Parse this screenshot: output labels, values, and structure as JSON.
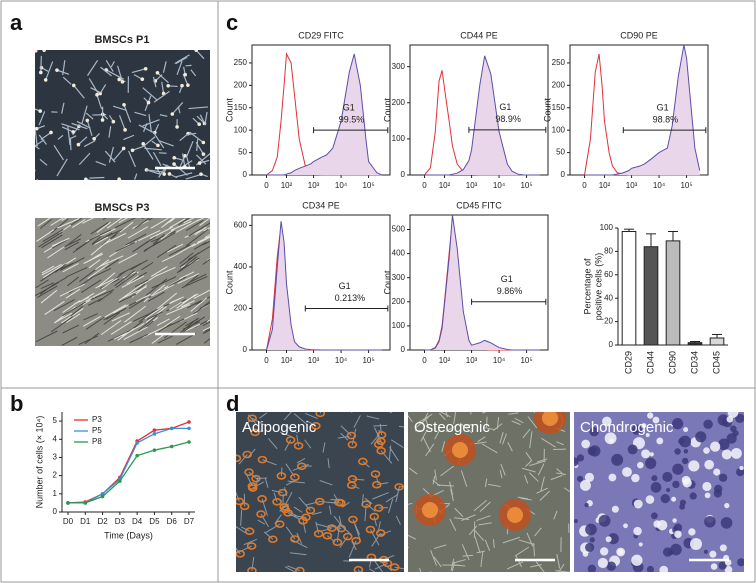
{
  "figure": {
    "panels": [
      "a",
      "b",
      "c",
      "d"
    ],
    "images": [
      {
        "caption": "BMSCs P1"
      },
      {
        "caption": "BMSCs P3"
      },
      {
        "caption": "Adipogenic"
      },
      {
        "caption": "Osteogenic"
      },
      {
        "caption": "Chondrogenic"
      }
    ]
  },
  "chart_data": [
    {
      "type": "flow",
      "title": "CD29 FITC",
      "ylabel": "Count",
      "xscale": "arcsinh",
      "x": [
        0,
        20,
        40,
        60,
        80,
        100,
        150,
        200,
        300,
        500,
        800,
        1000,
        2000,
        3000,
        5000,
        10000,
        20000,
        30000,
        50000,
        80000,
        100000,
        200000,
        300000
      ],
      "series": [
        {
          "color": "#e0303a",
          "values": [
            0,
            10,
            40,
            120,
            200,
            270,
            250,
            180,
            80,
            20,
            5,
            2,
            0,
            0,
            0,
            0,
            0,
            0,
            0,
            0,
            0,
            0,
            0
          ]
        },
        {
          "color": "#5a4fa8",
          "values": [
            0,
            0,
            0,
            0,
            0,
            2,
            5,
            10,
            15,
            20,
            25,
            30,
            40,
            45,
            60,
            120,
            230,
            270,
            200,
            80,
            30,
            5,
            0
          ]
        }
      ],
      "xlim": [
        -60,
        600000
      ],
      "ylim": [
        0,
        290
      ],
      "yticks": [
        0,
        50,
        100,
        150,
        200,
        250
      ],
      "xticks": [
        0,
        {
          "value": 100,
          "label": "10²"
        },
        {
          "value": 1000,
          "label": "10³"
        },
        {
          "value": 10000,
          "label": "10⁴"
        },
        {
          "value": 100000,
          "label": "10⁵"
        }
      ],
      "gate": {
        "name": "G1",
        "label": "99.5%",
        "x": [
          1000,
          500000
        ],
        "y": 100
      }
    },
    {
      "type": "flow",
      "title": "CD44 PE",
      "ylabel": "Count",
      "xscale": "arcsinh",
      "x": [
        0,
        20,
        40,
        60,
        80,
        100,
        150,
        200,
        300,
        500,
        800,
        1000,
        2000,
        3000,
        5000,
        10000,
        20000,
        30000,
        50000,
        80000,
        100000,
        200000,
        300000
      ],
      "series": [
        {
          "color": "#e0303a",
          "values": [
            0,
            20,
            120,
            260,
            290,
            240,
            150,
            80,
            30,
            10,
            5,
            2,
            0,
            0,
            0,
            0,
            0,
            0,
            0,
            0,
            0,
            0,
            0
          ]
        },
        {
          "color": "#5a4fa8",
          "values": [
            0,
            0,
            0,
            0,
            0,
            0,
            0,
            2,
            5,
            15,
            40,
            70,
            250,
            330,
            280,
            120,
            30,
            10,
            2,
            0,
            0,
            0,
            0
          ]
        }
      ],
      "xlim": [
        -60,
        600000
      ],
      "ylim": [
        0,
        360
      ],
      "yticks": [
        0,
        100,
        200,
        300
      ],
      "xticks": [
        0,
        {
          "value": 100,
          "label": "10²"
        },
        {
          "value": 1000,
          "label": "10³"
        },
        {
          "value": 10000,
          "label": "10⁴"
        },
        {
          "value": 100000,
          "label": "10⁵"
        }
      ],
      "gate": {
        "name": "G1",
        "label": "98.9%",
        "x": [
          800,
          500000
        ],
        "y": 125
      }
    },
    {
      "type": "flow",
      "title": "CD90 PE",
      "ylabel": "Count",
      "xscale": "arcsinh",
      "x": [
        0,
        20,
        40,
        60,
        80,
        100,
        150,
        200,
        300,
        500,
        800,
        1000,
        2000,
        3000,
        5000,
        10000,
        20000,
        30000,
        50000,
        80000,
        100000,
        200000,
        300000
      ],
      "series": [
        {
          "color": "#e0303a",
          "values": [
            0,
            80,
            230,
            270,
            200,
            120,
            50,
            20,
            5,
            2,
            0,
            0,
            0,
            0,
            0,
            0,
            0,
            0,
            0,
            0,
            0,
            0,
            0
          ]
        },
        {
          "color": "#5a4fa8",
          "values": [
            0,
            0,
            0,
            0,
            0,
            0,
            0,
            0,
            2,
            5,
            10,
            15,
            20,
            25,
            35,
            50,
            60,
            110,
            220,
            290,
            260,
            60,
            10
          ]
        }
      ],
      "xlim": [
        -60,
        600000
      ],
      "ylim": [
        0,
        290
      ],
      "yticks": [
        0,
        50,
        100,
        150,
        200,
        250
      ],
      "xticks": [
        0,
        {
          "value": 100,
          "label": "10²"
        },
        {
          "value": 1000,
          "label": "10³"
        },
        {
          "value": 10000,
          "label": "10⁴"
        },
        {
          "value": 100000,
          "label": "10⁵"
        }
      ],
      "gate": {
        "name": "G1",
        "label": "98.8%",
        "x": [
          500,
          500000
        ],
        "y": 100
      }
    },
    {
      "type": "flow",
      "title": "CD34 PE",
      "ylabel": "Count",
      "xscale": "arcsinh",
      "x": [
        0,
        20,
        40,
        60,
        80,
        100,
        150,
        200,
        300,
        500,
        800,
        1000,
        2000,
        3000,
        5000,
        10000,
        20000,
        30000,
        50000,
        80000,
        100000,
        200000,
        300000
      ],
      "series": [
        {
          "color": "#e0303a",
          "values": [
            0,
            150,
            450,
            600,
            500,
            300,
            100,
            30,
            10,
            2,
            0,
            0,
            0,
            0,
            0,
            0,
            0,
            0,
            0,
            0,
            0,
            0,
            0
          ]
        },
        {
          "color": "#5a4fa8",
          "values": [
            0,
            100,
            400,
            620,
            520,
            320,
            120,
            40,
            15,
            5,
            2,
            1,
            0,
            0,
            0,
            0,
            0,
            0,
            0,
            0,
            0,
            0,
            0
          ]
        }
      ],
      "xlim": [
        -60,
        600000
      ],
      "ylim": [
        0,
        650
      ],
      "yticks": [
        0,
        200,
        400,
        600
      ],
      "xticks": [
        0,
        {
          "value": 100,
          "label": "10²"
        },
        {
          "value": 1000,
          "label": "10³"
        },
        {
          "value": 10000,
          "label": "10⁴"
        },
        {
          "value": 100000,
          "label": "10⁵"
        }
      ],
      "gate": {
        "name": "G1",
        "label": "0.213%",
        "x": [
          500,
          500000
        ],
        "y": 200
      }
    },
    {
      "type": "flow",
      "title": "CD45 FITC",
      "ylabel": "Count",
      "xscale": "arcsinh",
      "x": [
        0,
        20,
        40,
        60,
        80,
        100,
        150,
        200,
        300,
        500,
        800,
        1000,
        2000,
        3000,
        5000,
        10000,
        20000,
        30000,
        50000,
        80000,
        100000,
        200000,
        300000
      ],
      "series": [
        {
          "color": "#e0303a",
          "values": [
            0,
            0,
            10,
            40,
            100,
            200,
            400,
            540,
            400,
            150,
            40,
            10,
            5,
            2,
            0,
            0,
            0,
            0,
            0,
            0,
            0,
            0,
            0
          ]
        },
        {
          "color": "#5a4fa8",
          "values": [
            0,
            0,
            8,
            35,
            90,
            190,
            380,
            560,
            420,
            160,
            40,
            20,
            30,
            40,
            30,
            10,
            2,
            0,
            0,
            0,
            0,
            0,
            0
          ]
        }
      ],
      "xlim": [
        -60,
        600000
      ],
      "ylim": [
        0,
        560
      ],
      "yticks": [
        0,
        100,
        200,
        300,
        400,
        500
      ],
      "xticks": [
        0,
        {
          "value": 100,
          "label": "10²"
        },
        {
          "value": 1000,
          "label": "10³"
        },
        {
          "value": 10000,
          "label": "10⁴"
        },
        {
          "value": 100000,
          "label": "10⁵"
        }
      ],
      "gate": {
        "name": "G1",
        "label": "9.86%",
        "x": [
          1000,
          500000
        ],
        "y": 200
      }
    },
    {
      "type": "bar",
      "ylabel": [
        "Percentage of",
        "positive cells (%)"
      ],
      "categories": [
        "CD29",
        "CD44",
        "CD90",
        "CD34",
        "CD45"
      ],
      "values": [
        97,
        84,
        89,
        2,
        6
      ],
      "errors": [
        2,
        11,
        8,
        1,
        3
      ],
      "colors": [
        "#ffffff",
        "#555555",
        "#bbbbbb",
        "#333333",
        "#d8d8d8"
      ],
      "ylim": [
        0,
        100
      ],
      "yticks": [
        0,
        20,
        40,
        60,
        80,
        100
      ]
    },
    {
      "type": "line",
      "ylabel": "Number of cells (× 10⁴)",
      "xlabel": "Time (Days)",
      "categories": [
        "D0",
        "D1",
        "D2",
        "D3",
        "D4",
        "D5",
        "D6",
        "D7"
      ],
      "series": [
        {
          "name": "P3",
          "color": "#e0303a",
          "values": [
            0.5,
            0.55,
            1.0,
            1.9,
            3.9,
            4.5,
            4.6,
            4.95
          ]
        },
        {
          "name": "P5",
          "color": "#3a8fd8",
          "values": [
            0.5,
            0.5,
            1.0,
            1.8,
            3.8,
            4.3,
            4.6,
            4.6
          ]
        },
        {
          "name": "P8",
          "color": "#2a9a4a",
          "values": [
            0.5,
            0.5,
            0.85,
            1.7,
            3.1,
            3.4,
            3.6,
            3.85
          ]
        }
      ],
      "ylim": [
        0,
        5.5
      ],
      "yticks": [
        0,
        1,
        2,
        3,
        4,
        5
      ],
      "legend": "upper-left"
    }
  ]
}
